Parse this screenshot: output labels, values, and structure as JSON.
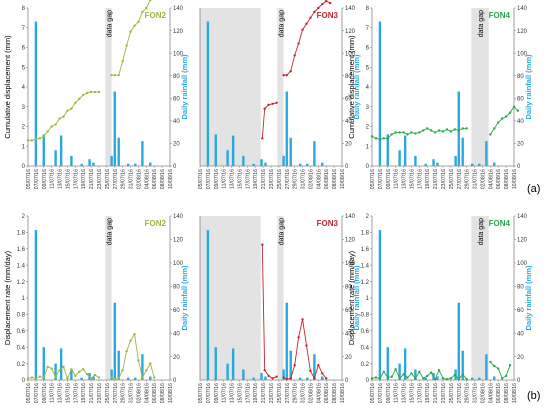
{
  "colors": {
    "rain": "#2aa9df",
    "fon2": "#9ab83d",
    "fon3": "#c0272d",
    "fon4": "#2aa84a",
    "gap": "#e3e3e3",
    "axis": "#888888"
  },
  "panel_labels": [
    "(a)",
    "(b)"
  ],
  "dates": [
    "05/07/16",
    "07/07/16",
    "09/07/16",
    "11/07/16",
    "13/07/16",
    "15/07/16",
    "17/07/16",
    "19/07/16",
    "21/07/16",
    "23/07/16",
    "25/07/16",
    "27/07/16",
    "29/07/16",
    "31/07/16",
    "02/08/16",
    "04/08/16",
    "06/08/16",
    "08/08/16",
    "10/08/16"
  ],
  "rainfall": [
    {
      "x": 1.0,
      "y": 128
    },
    {
      "x": 2.0,
      "y": 28
    },
    {
      "x": 3.5,
      "y": 14
    },
    {
      "x": 4.2,
      "y": 27
    },
    {
      "x": 5.5,
      "y": 9
    },
    {
      "x": 6.8,
      "y": 2
    },
    {
      "x": 7.8,
      "y": 6
    },
    {
      "x": 8.3,
      "y": 3
    },
    {
      "x": 10.6,
      "y": 9
    },
    {
      "x": 11.0,
      "y": 66
    },
    {
      "x": 11.5,
      "y": 25
    },
    {
      "x": 12.7,
      "y": 2
    },
    {
      "x": 13.6,
      "y": 2
    },
    {
      "x": 14.5,
      "y": 22
    },
    {
      "x": 15.5,
      "y": 3
    }
  ],
  "chart_data": [
    {
      "type": "line",
      "title": "FON2",
      "ylabel": "Cumulative displacement (mm)",
      "y2label": "Daily rainfall (mm)",
      "ylim": [
        0,
        8
      ],
      "yticks": [
        0,
        1,
        2,
        3,
        4,
        5,
        6,
        7,
        8
      ],
      "y2lim": [
        0,
        140
      ],
      "y2ticks": [
        0,
        20,
        40,
        60,
        80,
        100,
        120,
        140
      ],
      "gap_label": "data gap",
      "gap_range": [
        9.8,
        10.6
      ],
      "series": [
        {
          "segments": [
            [
              [
                0,
                1.3
              ],
              [
                0.5,
                1.3
              ],
              [
                1,
                1.35
              ],
              [
                1.5,
                1.4
              ],
              [
                2,
                1.5
              ],
              [
                2.5,
                1.75
              ],
              [
                3,
                2.0
              ],
              [
                3.5,
                2.1
              ],
              [
                4,
                2.4
              ],
              [
                4.5,
                2.5
              ],
              [
                5,
                2.8
              ],
              [
                5.5,
                2.9
              ],
              [
                6,
                3.2
              ],
              [
                6.5,
                3.4
              ],
              [
                7,
                3.6
              ],
              [
                7.5,
                3.7
              ],
              [
                8,
                3.75
              ],
              [
                8.5,
                3.75
              ],
              [
                9,
                3.75
              ]
            ],
            [
              [
                10.6,
                4.6
              ],
              [
                11,
                4.6
              ],
              [
                11.5,
                4.6
              ],
              [
                12,
                5.3
              ],
              [
                12.5,
                6.1
              ],
              [
                13,
                6.8
              ],
              [
                13.5,
                7.1
              ],
              [
                14,
                7.3
              ],
              [
                14.5,
                7.8
              ],
              [
                15,
                8.0
              ],
              [
                15.5,
                8.4
              ],
              [
                16,
                8.6
              ],
              [
                16.5,
                8.8
              ],
              [
                17,
                8.8
              ]
            ]
          ]
        }
      ]
    },
    {
      "type": "line",
      "title": "FON3",
      "ylabel": "",
      "y2label": "Daily rainfall (mm)",
      "ylim": [
        0,
        8
      ],
      "yticks": [],
      "y2lim": [
        0,
        140
      ],
      "y2ticks": [
        0,
        20,
        40,
        60,
        80,
        100,
        120,
        140
      ],
      "gap_label": "data gap",
      "gap_range": [
        0,
        7.7
      ],
      "gap2_range": [
        9.8,
        10.6
      ],
      "series": [
        {
          "segments": [
            [
              [
                7.9,
                1.4
              ],
              [
                8.2,
                2.9
              ],
              [
                8.7,
                3.1
              ],
              [
                9.2,
                3.15
              ],
              [
                9.7,
                3.2
              ]
            ],
            [
              [
                10.6,
                4.6
              ],
              [
                11,
                4.6
              ],
              [
                11.5,
                4.8
              ],
              [
                12,
                5.6
              ],
              [
                12.5,
                6.2
              ],
              [
                13,
                6.9
              ],
              [
                13.5,
                7.2
              ],
              [
                14,
                7.5
              ],
              [
                14.5,
                7.8
              ],
              [
                15,
                8.0
              ],
              [
                15.5,
                8.2
              ],
              [
                16,
                8.35
              ],
              [
                16.5,
                8.25
              ]
            ]
          ]
        }
      ]
    },
    {
      "type": "line",
      "title": "FON4",
      "ylabel": "Cumulative displacement (mm)",
      "y2label": "Daily rainfall (mm)",
      "ylim": [
        0,
        8
      ],
      "yticks": [
        0,
        1,
        2,
        3,
        4,
        5,
        6,
        7,
        8
      ],
      "y2lim": [
        0,
        140
      ],
      "y2ticks": [
        0,
        20,
        40,
        60,
        80,
        100,
        120,
        140
      ],
      "gap_label": "data gap",
      "gap_range": [
        12.6,
        14.8
      ],
      "series": [
        {
          "segments": [
            [
              [
                0,
                1.5
              ],
              [
                0.5,
                1.4
              ],
              [
                1,
                1.35
              ],
              [
                1.5,
                1.4
              ],
              [
                2,
                1.4
              ],
              [
                2.5,
                1.6
              ],
              [
                3,
                1.7
              ],
              [
                3.5,
                1.7
              ],
              [
                4,
                1.7
              ],
              [
                4.5,
                1.6
              ],
              [
                5,
                1.7
              ],
              [
                5.5,
                1.65
              ],
              [
                6,
                1.7
              ],
              [
                6.5,
                1.8
              ],
              [
                7,
                1.9
              ],
              [
                7.5,
                1.8
              ],
              [
                8,
                1.7
              ],
              [
                8.5,
                1.8
              ],
              [
                9,
                1.75
              ],
              [
                9.5,
                1.85
              ],
              [
                10,
                1.75
              ],
              [
                10.5,
                1.85
              ],
              [
                11,
                1.8
              ],
              [
                11.5,
                1.9
              ],
              [
                12,
                1.9
              ]
            ],
            [
              [
                15,
                1.6
              ],
              [
                15.5,
                1.9
              ],
              [
                16,
                2.2
              ],
              [
                16.5,
                2.4
              ],
              [
                17,
                2.5
              ],
              [
                17.5,
                2.7
              ],
              [
                18,
                3.0
              ],
              [
                18.5,
                2.8
              ]
            ]
          ]
        }
      ]
    },
    {
      "type": "line",
      "title": "FON2",
      "ylabel": "Displacement rate (mm/day)",
      "y2label": "Daily rainfall (mm)",
      "ylim": [
        0,
        2
      ],
      "yticks": [
        0,
        0.2,
        0.4,
        0.6,
        0.8,
        1,
        1.2,
        1.4,
        1.6,
        1.8,
        2
      ],
      "y2lim": [
        0,
        140
      ],
      "y2ticks": [
        0,
        20,
        40,
        60,
        80,
        100,
        120,
        140
      ],
      "gap_label": "data gap",
      "gap_range": [
        9.8,
        10.6
      ],
      "series": [
        {
          "segments": [
            [
              [
                0,
                0.02
              ],
              [
                0.5,
                0.03
              ],
              [
                1,
                0.02
              ],
              [
                1.5,
                0.04
              ],
              [
                2,
                0.03
              ],
              [
                2.5,
                0.16
              ],
              [
                3,
                0.14
              ],
              [
                3.5,
                0.04
              ],
              [
                4,
                0.12
              ],
              [
                4.5,
                0.16
              ],
              [
                5,
                0.02
              ],
              [
                5.5,
                0.13
              ],
              [
                6,
                0.05
              ],
              [
                6.5,
                0.1
              ],
              [
                7,
                0.13
              ],
              [
                7.5,
                0.07
              ],
              [
                8,
                0.02
              ],
              [
                8.5,
                0.06
              ],
              [
                9,
                0.03
              ]
            ],
            [
              [
                10.6,
                0.03
              ],
              [
                11,
                0.01
              ],
              [
                11.5,
                0.02
              ],
              [
                12,
                0.12
              ],
              [
                12.5,
                0.35
              ],
              [
                13,
                0.48
              ],
              [
                13.5,
                0.56
              ],
              [
                14,
                0.24
              ],
              [
                14.5,
                0.03
              ],
              [
                15,
                0.12
              ],
              [
                15.5,
                0.2
              ],
              [
                16,
                0.03
              ]
            ]
          ]
        }
      ]
    },
    {
      "type": "line",
      "title": "FON3",
      "ylabel": "",
      "y2label": "Daily rainfall (mm)",
      "ylim": [
        0,
        2
      ],
      "yticks": [],
      "y2lim": [
        0,
        140
      ],
      "y2ticks": [
        0,
        20,
        40,
        60,
        80,
        100,
        120,
        140
      ],
      "gap_label": "data gap",
      "gap_range": [
        0,
        7.7
      ],
      "gap2_range": [
        9.8,
        10.6
      ],
      "series": [
        {
          "segments": [
            [
              [
                7.9,
                1.65
              ],
              [
                8.2,
                0.12
              ],
              [
                8.7,
                0.05
              ],
              [
                9.2,
                0.02
              ],
              [
                9.7,
                0.04
              ]
            ],
            [
              [
                10.6,
                0.03
              ],
              [
                11,
                0.01
              ],
              [
                11.5,
                0.02
              ],
              [
                12,
                0.18
              ],
              [
                12.5,
                0.52
              ],
              [
                13,
                0.74
              ],
              [
                13.5,
                0.42
              ],
              [
                14,
                0.11
              ],
              [
                14.5,
                0.02
              ],
              [
                15,
                0.18
              ],
              [
                15.5,
                0.08
              ],
              [
                16,
                0.02
              ]
            ]
          ]
        }
      ]
    },
    {
      "type": "line",
      "title": "FON4",
      "ylabel": "Displacement rate (mm/day)",
      "y2label": "Daily rainfall (mm)",
      "ylim": [
        0,
        2
      ],
      "yticks": [
        0,
        0.2,
        0.4,
        0.6,
        0.8,
        1,
        1.2,
        1.4,
        1.6,
        1.8,
        2
      ],
      "y2lim": [
        0,
        140
      ],
      "y2ticks": [
        0,
        20,
        40,
        60,
        80,
        100,
        120,
        140
      ],
      "gap_label": "data gap",
      "gap_range": [
        12.6,
        14.8
      ],
      "series": [
        {
          "segments": [
            [
              [
                0,
                0.02
              ],
              [
                0.5,
                0.03
              ],
              [
                1,
                0.02
              ],
              [
                1.5,
                0.1
              ],
              [
                2,
                0.03
              ],
              [
                2.5,
                0.04
              ],
              [
                3,
                0.13
              ],
              [
                3.5,
                0.02
              ],
              [
                4,
                0.07
              ],
              [
                4.5,
                0.03
              ],
              [
                5,
                0.08
              ],
              [
                5.5,
                0.02
              ],
              [
                6,
                0.1
              ],
              [
                6.5,
                0.02
              ],
              [
                7,
                0.05
              ],
              [
                7.5,
                0.09
              ],
              [
                8,
                0.01
              ],
              [
                8.5,
                0.12
              ],
              [
                9,
                0.02
              ],
              [
                9.5,
                0.01
              ],
              [
                10,
                0.02
              ],
              [
                10.5,
                0.06
              ],
              [
                11,
                0.01
              ],
              [
                11.5,
                0.07
              ],
              [
                12,
                0.01
              ]
            ],
            [
              [
                15,
                0.22
              ],
              [
                15.5,
                0.17
              ],
              [
                16,
                0.14
              ],
              [
                16.5,
                0.02
              ],
              [
                17,
                0.05
              ],
              [
                17.5,
                0.18
              ]
            ]
          ]
        }
      ]
    }
  ]
}
